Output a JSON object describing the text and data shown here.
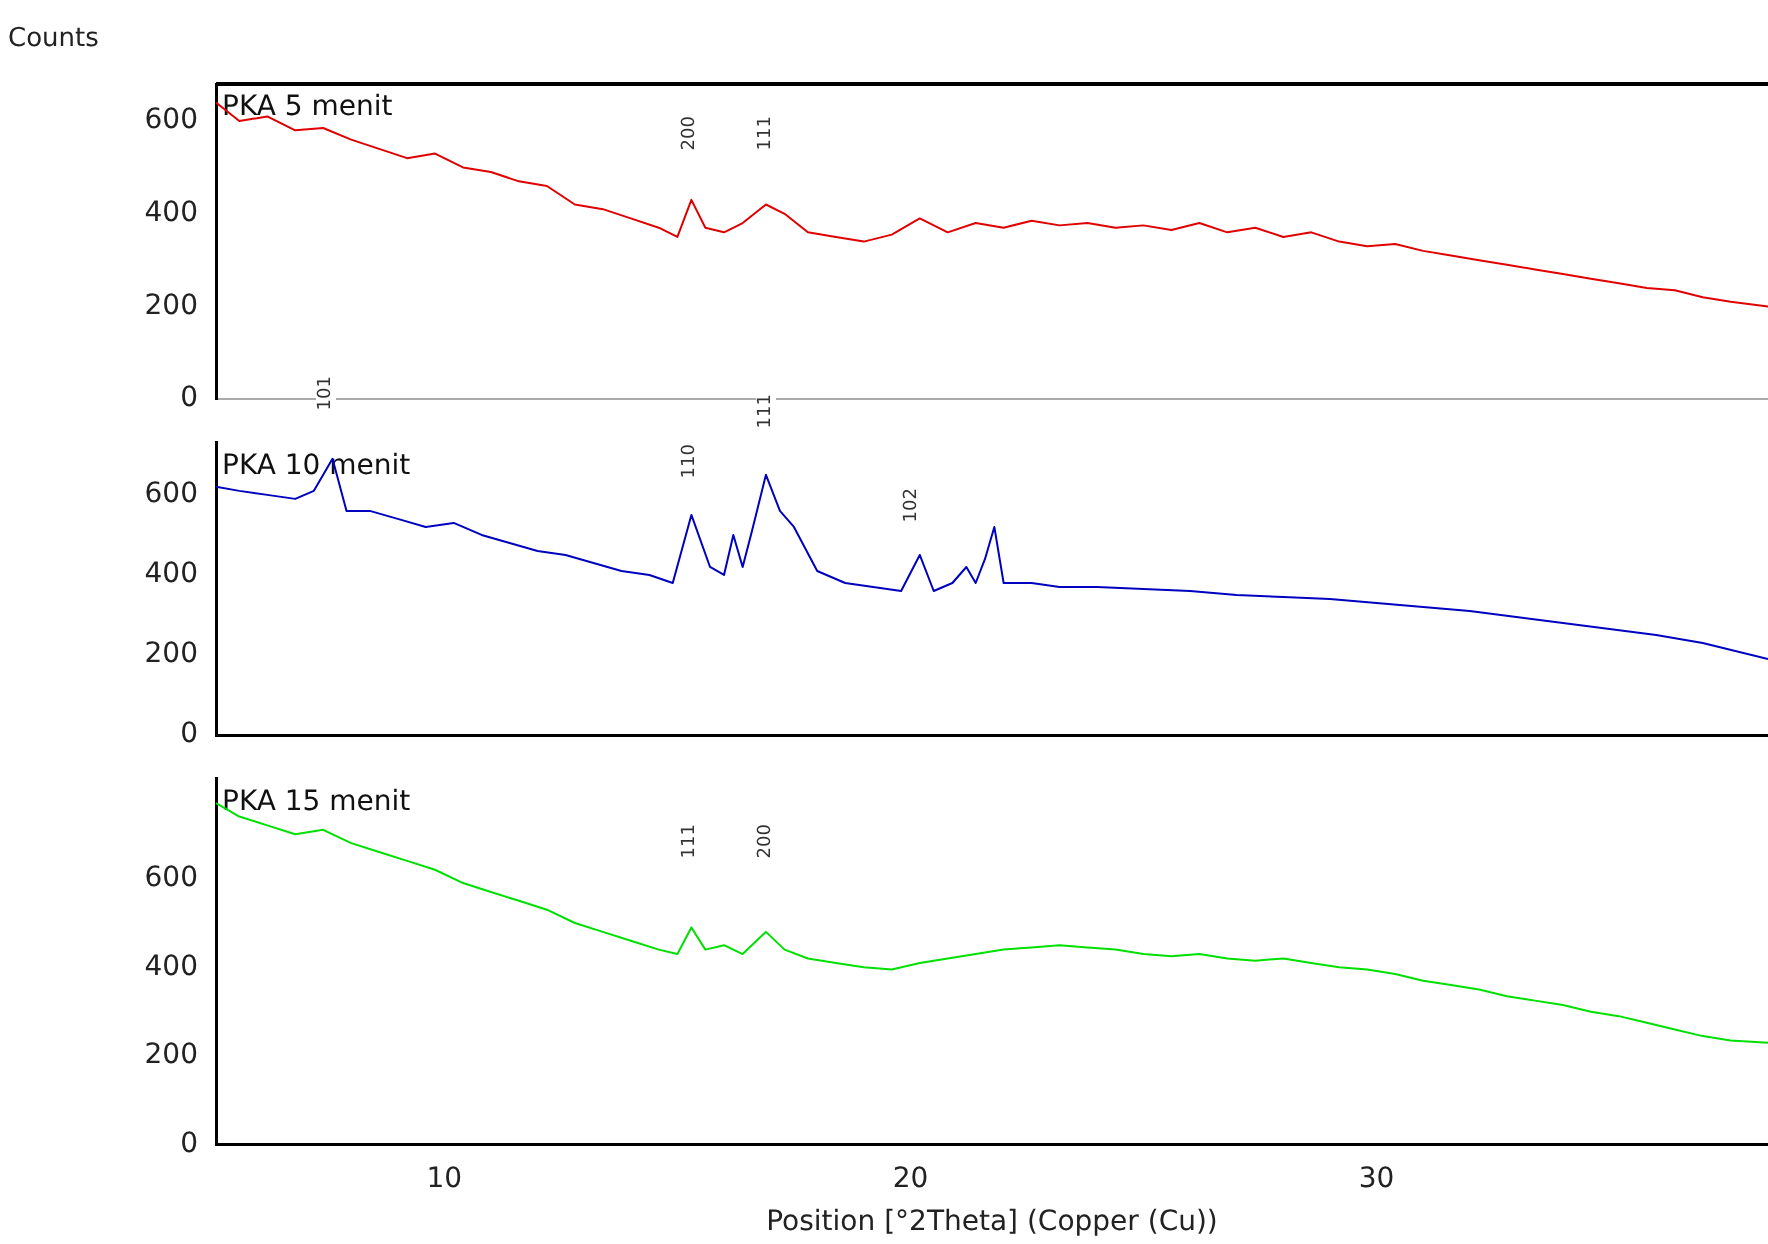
{
  "chart_data": [
    {
      "type": "line",
      "ylabel": "Counts",
      "xlim": [
        5.1,
        38.4
      ],
      "ylim": [
        0,
        680
      ],
      "yticks": [
        0,
        200,
        400,
        600
      ],
      "tick_labels": "y",
      "grid": false,
      "legend": false,
      "marker": "none",
      "line_style": "solid",
      "annotations": [
        "200",
        "111"
      ],
      "series": [
        {
          "name": "PKA 5 menit",
          "color": "#e00000",
          "x": [
            5.1,
            5.6,
            6.2,
            6.8,
            7.4,
            8,
            8.6,
            9.2,
            9.8,
            10.4,
            11,
            11.6,
            12.2,
            12.8,
            13.4,
            14,
            14.6,
            15,
            15.3,
            15.6,
            16,
            16.4,
            16.9,
            17.3,
            17.8,
            18.4,
            19,
            19.6,
            20.2,
            20.8,
            21.4,
            22,
            22.6,
            23.2,
            23.8,
            24.4,
            25,
            25.6,
            26.2,
            26.8,
            27.4,
            28,
            28.6,
            29.2,
            29.8,
            30.4,
            31,
            31.6,
            32.2,
            32.8,
            33.4,
            34,
            34.6,
            35.2,
            35.8,
            36.4,
            37,
            37.6,
            38.4
          ],
          "values": [
            640,
            600,
            610,
            580,
            585,
            560,
            540,
            520,
            530,
            500,
            490,
            470,
            460,
            420,
            410,
            390,
            370,
            350,
            430,
            370,
            360,
            380,
            420,
            400,
            360,
            350,
            340,
            355,
            390,
            360,
            380,
            370,
            385,
            375,
            380,
            370,
            375,
            365,
            380,
            360,
            370,
            350,
            360,
            340,
            330,
            335,
            320,
            310,
            300,
            290,
            280,
            270,
            260,
            250,
            240,
            235,
            220,
            210,
            200
          ]
        }
      ]
    },
    {
      "type": "line",
      "xlim": [
        5.1,
        38.4
      ],
      "ylim": [
        0,
        730
      ],
      "yticks": [
        0,
        200,
        400,
        600
      ],
      "tick_labels": "y",
      "grid": false,
      "legend": false,
      "marker": "none",
      "line_style": "solid",
      "annotations": [
        "101",
        "110",
        "111",
        "102"
      ],
      "series": [
        {
          "name": "PKA 10 menit",
          "color": "#0000c0",
          "x": [
            5.1,
            5.6,
            6.2,
            6.8,
            7.2,
            7.6,
            7.9,
            8.4,
            9,
            9.6,
            10.2,
            10.8,
            11.4,
            12,
            12.6,
            13.2,
            13.8,
            14.4,
            14.9,
            15.3,
            15.7,
            16,
            16.2,
            16.4,
            16.6,
            16.9,
            17.2,
            17.5,
            18,
            18.6,
            19.2,
            19.8,
            20.2,
            20.5,
            20.9,
            21.2,
            21.4,
            21.6,
            21.8,
            22,
            22.6,
            23.2,
            24,
            25,
            26,
            27,
            28,
            29,
            30,
            31,
            32,
            33,
            34,
            35,
            36,
            37,
            38.4
          ],
          "values": [
            620,
            610,
            600,
            590,
            610,
            690,
            560,
            560,
            540,
            520,
            530,
            500,
            480,
            460,
            450,
            430,
            410,
            400,
            380,
            550,
            420,
            400,
            500,
            420,
            510,
            650,
            560,
            520,
            410,
            380,
            370,
            360,
            450,
            360,
            380,
            420,
            380,
            440,
            520,
            380,
            380,
            370,
            370,
            365,
            360,
            350,
            345,
            340,
            330,
            320,
            310,
            295,
            280,
            265,
            250,
            230,
            190
          ]
        }
      ]
    },
    {
      "type": "line",
      "xlabel": "Position [°2Theta] (Copper (Cu))",
      "xlim": [
        5.1,
        38.4
      ],
      "ylim": [
        0,
        825
      ],
      "yticks": [
        0,
        200,
        400,
        600
      ],
      "xticks": [
        10,
        20,
        30
      ],
      "grid": false,
      "legend": false,
      "marker": "none",
      "line_style": "solid",
      "annotations": [
        "111",
        "200"
      ],
      "series": [
        {
          "name": "PKA 15 menit",
          "color": "#00e000",
          "x": [
            5.1,
            5.6,
            6.2,
            6.8,
            7.4,
            8,
            8.6,
            9.2,
            9.8,
            10.4,
            11,
            11.6,
            12.2,
            12.8,
            13.4,
            14,
            14.6,
            15,
            15.3,
            15.6,
            16,
            16.4,
            16.9,
            17.3,
            17.8,
            18.4,
            19,
            19.6,
            20.2,
            20.8,
            21.4,
            22,
            22.6,
            23.2,
            23.8,
            24.4,
            25,
            25.6,
            26.2,
            26.8,
            27.4,
            28,
            28.6,
            29.2,
            29.8,
            30.4,
            31,
            31.6,
            32.2,
            32.8,
            33.4,
            34,
            34.6,
            35.2,
            35.8,
            36.4,
            37,
            37.6,
            38.4
          ],
          "values": [
            770,
            740,
            720,
            700,
            710,
            680,
            660,
            640,
            620,
            590,
            570,
            550,
            530,
            500,
            480,
            460,
            440,
            430,
            490,
            440,
            450,
            430,
            480,
            440,
            420,
            410,
            400,
            395,
            410,
            420,
            430,
            440,
            445,
            450,
            445,
            440,
            430,
            425,
            430,
            420,
            415,
            420,
            410,
            400,
            395,
            385,
            370,
            360,
            350,
            335,
            325,
            315,
            300,
            290,
            275,
            260,
            245,
            235,
            230
          ]
        }
      ]
    }
  ]
}
